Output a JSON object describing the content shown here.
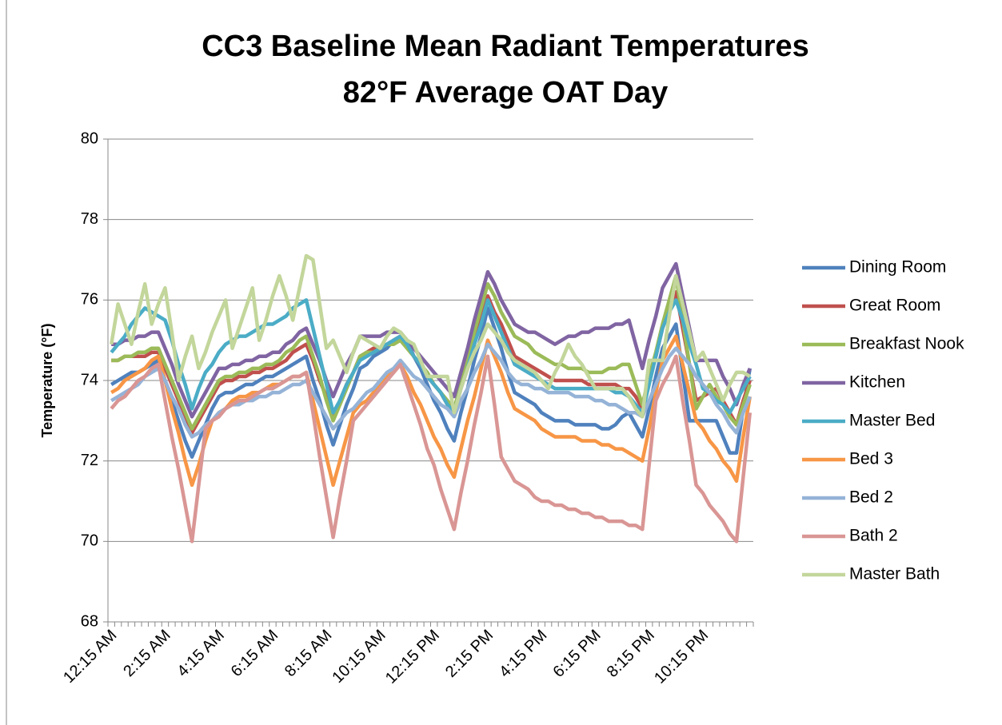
{
  "chart_data": {
    "type": "line",
    "title": "CC3 Baseline Mean Radiant Temperatures",
    "subtitle": "82°F Average OAT Day",
    "y_label": "Temperature (°F)",
    "ylim": [
      68,
      80
    ],
    "yticks": [
      68,
      70,
      72,
      74,
      76,
      78,
      80
    ],
    "grid": true,
    "legend": "right",
    "categories": [
      "12:15 AM",
      null,
      null,
      null,
      null,
      null,
      null,
      null,
      "2:15 AM",
      null,
      null,
      null,
      null,
      null,
      null,
      null,
      "4:15 AM",
      null,
      null,
      null,
      null,
      null,
      null,
      null,
      "6:15 AM",
      null,
      null,
      null,
      null,
      null,
      null,
      null,
      "8:15 AM",
      null,
      null,
      null,
      null,
      null,
      null,
      null,
      "10:15 AM",
      null,
      null,
      null,
      null,
      null,
      null,
      null,
      "12:15 PM",
      null,
      null,
      null,
      null,
      null,
      null,
      null,
      "2:15 PM",
      null,
      null,
      null,
      null,
      null,
      null,
      null,
      "4:15 PM",
      null,
      null,
      null,
      null,
      null,
      null,
      null,
      "6:15 PM",
      null,
      null,
      null,
      null,
      null,
      null,
      null,
      "8:15 PM",
      null,
      null,
      null,
      null,
      null,
      null,
      null,
      "10:15 PM",
      null,
      null,
      null,
      null,
      null,
      null,
      null
    ],
    "series": [
      {
        "name": "Dining Room",
        "color": "#4f81bd",
        "values": [
          73.9,
          74.0,
          74.1,
          74.2,
          74.2,
          74.3,
          74.4,
          74.5,
          74.0,
          73.5,
          73.0,
          72.5,
          72.1,
          72.5,
          72.9,
          73.3,
          73.6,
          73.7,
          73.7,
          73.8,
          73.9,
          73.9,
          74.0,
          74.1,
          74.1,
          74.2,
          74.3,
          74.4,
          74.5,
          74.6,
          74.0,
          73.5,
          72.9,
          72.4,
          72.9,
          73.4,
          73.8,
          74.3,
          74.4,
          74.6,
          74.7,
          74.8,
          75.0,
          75.1,
          75.0,
          74.6,
          74.3,
          73.9,
          73.5,
          73.2,
          72.8,
          72.5,
          73.2,
          73.8,
          74.5,
          75.1,
          75.8,
          75.3,
          74.8,
          74.2,
          73.7,
          73.6,
          73.5,
          73.4,
          73.2,
          73.1,
          73.0,
          73.0,
          73.0,
          72.9,
          72.9,
          72.9,
          72.9,
          72.8,
          72.8,
          72.9,
          73.1,
          73.2,
          72.9,
          72.6,
          73.3,
          74.1,
          74.8,
          75.1,
          75.4,
          74.2,
          73.0,
          73.0,
          73.0,
          73.0,
          73.0,
          72.6,
          72.2,
          72.2,
          73.3,
          74.3
        ]
      },
      {
        "name": "Great Room",
        "color": "#c0504d",
        "values": [
          74.5,
          74.5,
          74.6,
          74.6,
          74.6,
          74.6,
          74.7,
          74.7,
          74.3,
          73.9,
          73.5,
          73.1,
          72.7,
          73.0,
          73.3,
          73.6,
          73.9,
          74.0,
          74.0,
          74.1,
          74.1,
          74.2,
          74.2,
          74.3,
          74.3,
          74.4,
          74.5,
          74.7,
          74.8,
          74.9,
          74.5,
          74.0,
          73.6,
          73.1,
          73.5,
          73.9,
          74.2,
          74.6,
          74.7,
          74.8,
          74.8,
          74.9,
          75.0,
          75.1,
          74.9,
          74.6,
          74.4,
          74.1,
          73.9,
          73.7,
          73.4,
          73.2,
          73.8,
          74.3,
          74.9,
          75.5,
          76.1,
          75.7,
          75.4,
          75.0,
          74.6,
          74.5,
          74.4,
          74.3,
          74.2,
          74.1,
          74.0,
          74.0,
          74.0,
          74.0,
          74.0,
          73.9,
          73.9,
          73.9,
          73.9,
          73.9,
          73.8,
          73.8,
          73.6,
          73.3,
          74.0,
          74.6,
          75.3,
          75.8,
          76.2,
          75.3,
          74.4,
          73.5,
          73.6,
          73.7,
          73.8,
          73.5,
          73.2,
          72.9,
          73.5,
          74.0
        ]
      },
      {
        "name": "Breakfast Nook",
        "color": "#9bbb59",
        "values": [
          74.5,
          74.5,
          74.6,
          74.6,
          74.7,
          74.7,
          74.8,
          74.8,
          74.4,
          74.0,
          73.6,
          73.2,
          72.8,
          73.1,
          73.4,
          73.7,
          74.0,
          74.1,
          74.1,
          74.2,
          74.2,
          74.3,
          74.3,
          74.4,
          74.4,
          74.5,
          74.7,
          74.8,
          75.0,
          75.1,
          74.6,
          74.1,
          73.5,
          73.0,
          73.4,
          73.8,
          74.2,
          74.6,
          74.7,
          74.7,
          74.8,
          74.9,
          74.9,
          75.0,
          74.8,
          74.6,
          74.4,
          74.2,
          73.9,
          73.7,
          73.5,
          73.3,
          73.9,
          74.5,
          75.2,
          75.8,
          76.4,
          76.1,
          75.7,
          75.4,
          75.1,
          75.0,
          74.9,
          74.7,
          74.6,
          74.5,
          74.4,
          74.4,
          74.3,
          74.3,
          74.3,
          74.2,
          74.2,
          74.2,
          74.3,
          74.3,
          74.4,
          74.4,
          73.9,
          73.4,
          74.1,
          74.7,
          75.4,
          76.0,
          76.6,
          75.5,
          74.4,
          73.3,
          73.6,
          73.9,
          73.6,
          73.4,
          73.1,
          72.9,
          73.4,
          73.9
        ]
      },
      {
        "name": "Kitchen",
        "color": "#8064a2",
        "values": [
          74.9,
          74.9,
          75.0,
          75.0,
          75.1,
          75.1,
          75.2,
          75.2,
          74.8,
          74.4,
          73.9,
          73.5,
          73.1,
          73.4,
          73.7,
          74.0,
          74.3,
          74.3,
          74.4,
          74.4,
          74.5,
          74.5,
          74.6,
          74.6,
          74.7,
          74.7,
          74.9,
          75.0,
          75.2,
          75.3,
          74.9,
          74.5,
          74.0,
          73.6,
          74.0,
          74.4,
          74.7,
          75.1,
          75.1,
          75.1,
          75.1,
          75.2,
          75.2,
          75.2,
          75.0,
          74.8,
          74.6,
          74.4,
          74.2,
          74.0,
          73.8,
          73.6,
          74.2,
          74.8,
          75.5,
          76.1,
          76.7,
          76.4,
          76.0,
          75.7,
          75.4,
          75.3,
          75.2,
          75.2,
          75.1,
          75.0,
          74.9,
          75.0,
          75.1,
          75.1,
          75.2,
          75.2,
          75.3,
          75.3,
          75.3,
          75.4,
          75.4,
          75.5,
          74.9,
          74.3,
          75.0,
          75.6,
          76.3,
          76.6,
          76.9,
          76.1,
          75.3,
          74.5,
          74.5,
          74.5,
          74.5,
          74.1,
          73.8,
          73.4,
          73.9,
          74.3
        ]
      },
      {
        "name": "Master Bed",
        "color": "#4bacc6",
        "values": [
          74.7,
          74.9,
          75.1,
          75.4,
          75.6,
          75.8,
          75.7,
          75.6,
          75.5,
          75.0,
          74.4,
          73.9,
          73.3,
          73.8,
          74.2,
          74.4,
          74.7,
          74.9,
          75.0,
          75.1,
          75.1,
          75.2,
          75.3,
          75.4,
          75.4,
          75.5,
          75.6,
          75.8,
          75.9,
          76.0,
          75.3,
          74.6,
          73.9,
          73.2,
          73.5,
          73.9,
          74.2,
          74.5,
          74.6,
          74.7,
          74.8,
          74.9,
          75.0,
          75.1,
          74.9,
          74.6,
          74.4,
          74.1,
          73.9,
          73.7,
          73.4,
          73.2,
          73.8,
          74.3,
          74.9,
          75.4,
          76.0,
          75.6,
          75.2,
          74.8,
          74.4,
          74.3,
          74.2,
          74.1,
          74.0,
          73.9,
          73.8,
          73.8,
          73.8,
          73.8,
          73.8,
          73.8,
          73.8,
          73.8,
          73.8,
          73.7,
          73.7,
          73.6,
          73.4,
          73.2,
          73.9,
          74.6,
          75.3,
          75.7,
          76.0,
          75.5,
          74.9,
          74.4,
          73.8,
          73.7,
          73.5,
          73.4,
          73.2,
          73.5,
          73.8,
          74.1
        ]
      },
      {
        "name": "Bed 3",
        "color": "#f79646",
        "values": [
          73.7,
          73.8,
          74.0,
          74.1,
          74.2,
          74.3,
          74.5,
          74.6,
          74.0,
          73.3,
          72.7,
          72.0,
          71.4,
          71.9,
          72.5,
          73.0,
          73.2,
          73.3,
          73.5,
          73.6,
          73.6,
          73.7,
          73.7,
          73.8,
          73.9,
          73.9,
          74.0,
          74.1,
          74.1,
          74.2,
          73.5,
          72.8,
          72.1,
          71.4,
          72.0,
          72.6,
          73.2,
          73.4,
          73.5,
          73.7,
          73.9,
          74.1,
          74.2,
          74.4,
          74.1,
          73.7,
          73.4,
          73.0,
          72.6,
          72.3,
          71.9,
          71.6,
          72.3,
          73.0,
          73.6,
          74.3,
          75.0,
          74.6,
          74.2,
          73.7,
          73.3,
          73.2,
          73.1,
          73.0,
          72.8,
          72.7,
          72.6,
          72.6,
          72.6,
          72.6,
          72.5,
          72.5,
          72.5,
          72.4,
          72.4,
          72.3,
          72.3,
          72.2,
          72.1,
          72.0,
          72.8,
          73.7,
          74.5,
          74.8,
          75.1,
          74.4,
          73.7,
          73.0,
          72.8,
          72.5,
          72.3,
          72.0,
          71.8,
          71.5,
          72.6,
          73.6
        ]
      },
      {
        "name": "Bed 2",
        "color": "#95b3d7",
        "values": [
          73.5,
          73.6,
          73.7,
          73.8,
          73.9,
          74.1,
          74.2,
          74.3,
          74.0,
          73.6,
          73.3,
          72.9,
          72.6,
          72.7,
          72.9,
          73.0,
          73.2,
          73.3,
          73.4,
          73.4,
          73.5,
          73.5,
          73.6,
          73.6,
          73.7,
          73.7,
          73.8,
          73.9,
          73.9,
          74.0,
          73.7,
          73.4,
          73.1,
          72.8,
          73.0,
          73.2,
          73.3,
          73.5,
          73.7,
          73.8,
          74.0,
          74.2,
          74.3,
          74.5,
          74.3,
          74.1,
          74.0,
          73.8,
          73.6,
          73.4,
          73.3,
          73.1,
          73.5,
          73.8,
          74.2,
          74.5,
          74.9,
          74.7,
          74.5,
          74.2,
          74.0,
          73.9,
          73.9,
          73.8,
          73.8,
          73.7,
          73.7,
          73.7,
          73.7,
          73.6,
          73.6,
          73.6,
          73.5,
          73.5,
          73.4,
          73.4,
          73.3,
          73.2,
          73.2,
          73.1,
          73.5,
          73.9,
          74.3,
          74.6,
          74.8,
          74.6,
          74.4,
          74.1,
          73.9,
          73.7,
          73.4,
          73.2,
          72.9,
          72.7,
          73.2,
          73.6
        ]
      },
      {
        "name": "Bath 2",
        "color": "#d99694",
        "values": [
          73.3,
          73.5,
          73.6,
          73.8,
          74.0,
          74.1,
          74.3,
          74.4,
          73.5,
          72.6,
          71.8,
          70.9,
          70.0,
          71.4,
          72.8,
          73.0,
          73.1,
          73.3,
          73.4,
          73.5,
          73.5,
          73.6,
          73.7,
          73.8,
          73.8,
          73.9,
          74.0,
          74.1,
          74.1,
          74.2,
          73.2,
          72.1,
          71.1,
          70.1,
          71.1,
          72.0,
          73.0,
          73.2,
          73.4,
          73.6,
          73.8,
          74.0,
          74.2,
          74.4,
          73.9,
          73.4,
          72.9,
          72.3,
          71.9,
          71.3,
          70.8,
          70.3,
          71.2,
          72.0,
          72.9,
          73.7,
          74.6,
          73.4,
          72.1,
          71.8,
          71.5,
          71.4,
          71.3,
          71.1,
          71.0,
          71.0,
          70.9,
          70.9,
          70.8,
          70.8,
          70.7,
          70.7,
          70.6,
          70.6,
          70.5,
          70.5,
          70.5,
          70.4,
          70.4,
          70.3,
          71.9,
          73.5,
          73.9,
          74.2,
          74.6,
          73.5,
          72.5,
          71.4,
          71.2,
          70.9,
          70.7,
          70.5,
          70.2,
          70.0,
          71.6,
          73.2
        ]
      },
      {
        "name": "Master Bath",
        "color": "#c3d69b",
        "values": [
          74.9,
          75.9,
          75.4,
          74.9,
          75.7,
          76.4,
          75.4,
          75.9,
          76.3,
          75.2,
          74.0,
          74.6,
          75.1,
          74.3,
          74.7,
          75.2,
          75.6,
          76.0,
          74.8,
          75.3,
          75.8,
          76.3,
          75.0,
          75.5,
          76.1,
          76.6,
          76.1,
          75.5,
          76.3,
          77.1,
          77.0,
          75.9,
          74.8,
          75.0,
          74.6,
          74.2,
          74.7,
          75.1,
          75.0,
          74.9,
          74.8,
          75.1,
          75.3,
          75.2,
          75.0,
          74.9,
          74.5,
          74.1,
          74.1,
          74.1,
          74.1,
          73.2,
          73.8,
          74.3,
          74.7,
          75.0,
          75.4,
          75.2,
          75.0,
          74.7,
          74.5,
          74.4,
          74.3,
          74.2,
          74.0,
          73.8,
          74.2,
          74.5,
          74.9,
          74.6,
          74.4,
          74.1,
          73.8,
          73.8,
          73.8,
          73.8,
          73.8,
          73.6,
          73.3,
          73.1,
          74.5,
          74.5,
          74.5,
          75.6,
          76.6,
          75.9,
          75.2,
          74.5,
          74.7,
          74.3,
          73.9,
          73.5,
          73.9,
          74.2,
          74.2,
          74.1
        ]
      }
    ]
  }
}
